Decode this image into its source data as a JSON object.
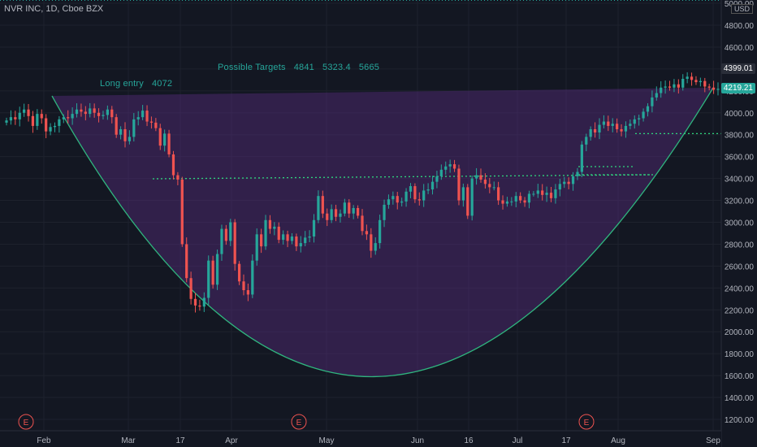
{
  "header": {
    "title": "NVR INC, 1D, Cboe BZX"
  },
  "currency": "USD",
  "annotations": {
    "targets_label": "Possible Targets",
    "targets": [
      "4841",
      "5323.4",
      "5665"
    ],
    "entry_label": "Long entry",
    "entry_value": "4072"
  },
  "price_tags": [
    {
      "label": "4399.01",
      "value": 4399.01,
      "color": "#2a2e39"
    },
    {
      "label": "4219.21",
      "value": 4219.21,
      "color": "#26a69a"
    }
  ],
  "colors": {
    "up": "#26a69a",
    "down": "#ef5350",
    "bg": "#131722",
    "grid": "#1e222d",
    "fill": "#5a2d82",
    "curve": "#2fb57e"
  },
  "earnings_markers": [
    "E",
    "E",
    "E"
  ],
  "chart_data": {
    "type": "candlestick",
    "title": "NVR INC, 1D, Cboe BZX",
    "x_ticks": [
      "Feb",
      "Mar",
      "17",
      "Apr",
      "May",
      "Jun",
      "16",
      "Jul",
      "17",
      "Aug",
      "Sep"
    ],
    "y_ticks": [
      "1200.00",
      "1400.00",
      "1600.00",
      "1800.00",
      "2000.00",
      "2200.00",
      "2400.00",
      "2600.00",
      "2800.00",
      "3000.00",
      "3200.00",
      "3400.00",
      "3600.00",
      "3800.00",
      "4000.00",
      "4200.00",
      "4400.00",
      "4600.00",
      "4800.00",
      "5000.00"
    ],
    "ylim": [
      1100,
      5000
    ],
    "grid": true,
    "long_entry": 4072,
    "possible_targets": [
      4841,
      5323.4,
      5665
    ],
    "cup_bottom": 1590,
    "support_levels": [
      3390,
      3430,
      3510,
      3810
    ],
    "closes": [
      3930,
      3960,
      3940,
      4000,
      4030,
      3970,
      3880,
      3990,
      3950,
      3830,
      3870,
      3880,
      3940,
      3960,
      3950,
      3990,
      4030,
      4010,
      3990,
      4040,
      4000,
      3970,
      3980,
      4030,
      3960,
      3800,
      3850,
      3740,
      3780,
      3940,
      3960,
      4020,
      3920,
      3910,
      3860,
      3700,
      3810,
      3620,
      3430,
      3390,
      2800,
      2490,
      2300,
      2240,
      2230,
      2310,
      2650,
      2430,
      2710,
      2940,
      2830,
      3000,
      2620,
      2460,
      2380,
      2340,
      2650,
      2890,
      2780,
      3020,
      2940,
      2960,
      2840,
      2890,
      2830,
      2870,
      2780,
      2810,
      2860,
      2870,
      3020,
      3240,
      3080,
      3020,
      3120,
      3050,
      3080,
      3180,
      3080,
      3130,
      3060,
      2920,
      2890,
      2740,
      2810,
      3020,
      3160,
      3210,
      3240,
      3180,
      3190,
      3280,
      3330,
      3210,
      3200,
      3290,
      3300,
      3370,
      3420,
      3480,
      3510,
      3530,
      3490,
      3200,
      3320,
      3060,
      3400,
      3430,
      3390,
      3350,
      3320,
      3320,
      3200,
      3170,
      3190,
      3190,
      3240,
      3200,
      3180,
      3260,
      3260,
      3290,
      3250,
      3270,
      3220,
      3300,
      3350,
      3370,
      3350,
      3420,
      3460,
      3710,
      3780,
      3850,
      3820,
      3890,
      3920,
      3880,
      3900,
      3850,
      3830,
      3880,
      3900,
      3940,
      3950,
      4010,
      4060,
      4140,
      4180,
      4230,
      4240,
      4230,
      4260,
      4230,
      4310,
      4330,
      4300,
      4280,
      4290,
      4240,
      4230,
      4210,
      4219
    ]
  }
}
